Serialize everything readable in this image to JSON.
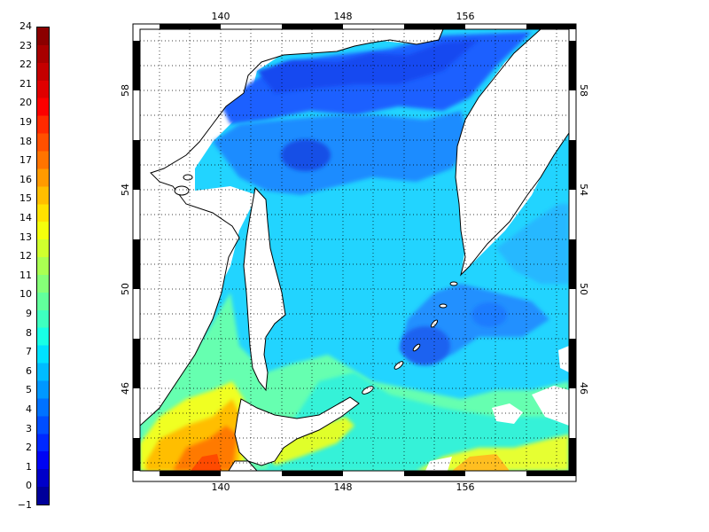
{
  "colorbar": {
    "ticks": [
      "24",
      "23",
      "22",
      "21",
      "20",
      "19",
      "18",
      "17",
      "16",
      "15",
      "14",
      "13",
      "12",
      "11",
      "10",
      "9",
      "8",
      "7",
      "6",
      "5",
      "4",
      "3",
      "2",
      "1",
      "0",
      "−1"
    ],
    "colors": [
      "#8b0000",
      "#a80000",
      "#c40000",
      "#e00000",
      "#fc0000",
      "#ff2a00",
      "#ff5000",
      "#ff7400",
      "#ff9a00",
      "#ffbe00",
      "#ffe200",
      "#f4ff0c",
      "#d0ff2e",
      "#aaff52",
      "#86ff78",
      "#62ff9c",
      "#3effc0",
      "#18ffe6",
      "#00e2ff",
      "#00bcff",
      "#0098ff",
      "#0072ff",
      "#004eff",
      "#0028ff",
      "#0004f4",
      "#0000c8",
      "#00009a"
    ]
  },
  "map": {
    "lon_ticks": [
      "140",
      "148",
      "156"
    ],
    "lat_ticks": [
      "58",
      "54",
      "50",
      "46"
    ],
    "lon_range": [
      135.5,
      163.5
    ],
    "lat_range": [
      42.5,
      59.7
    ]
  }
}
